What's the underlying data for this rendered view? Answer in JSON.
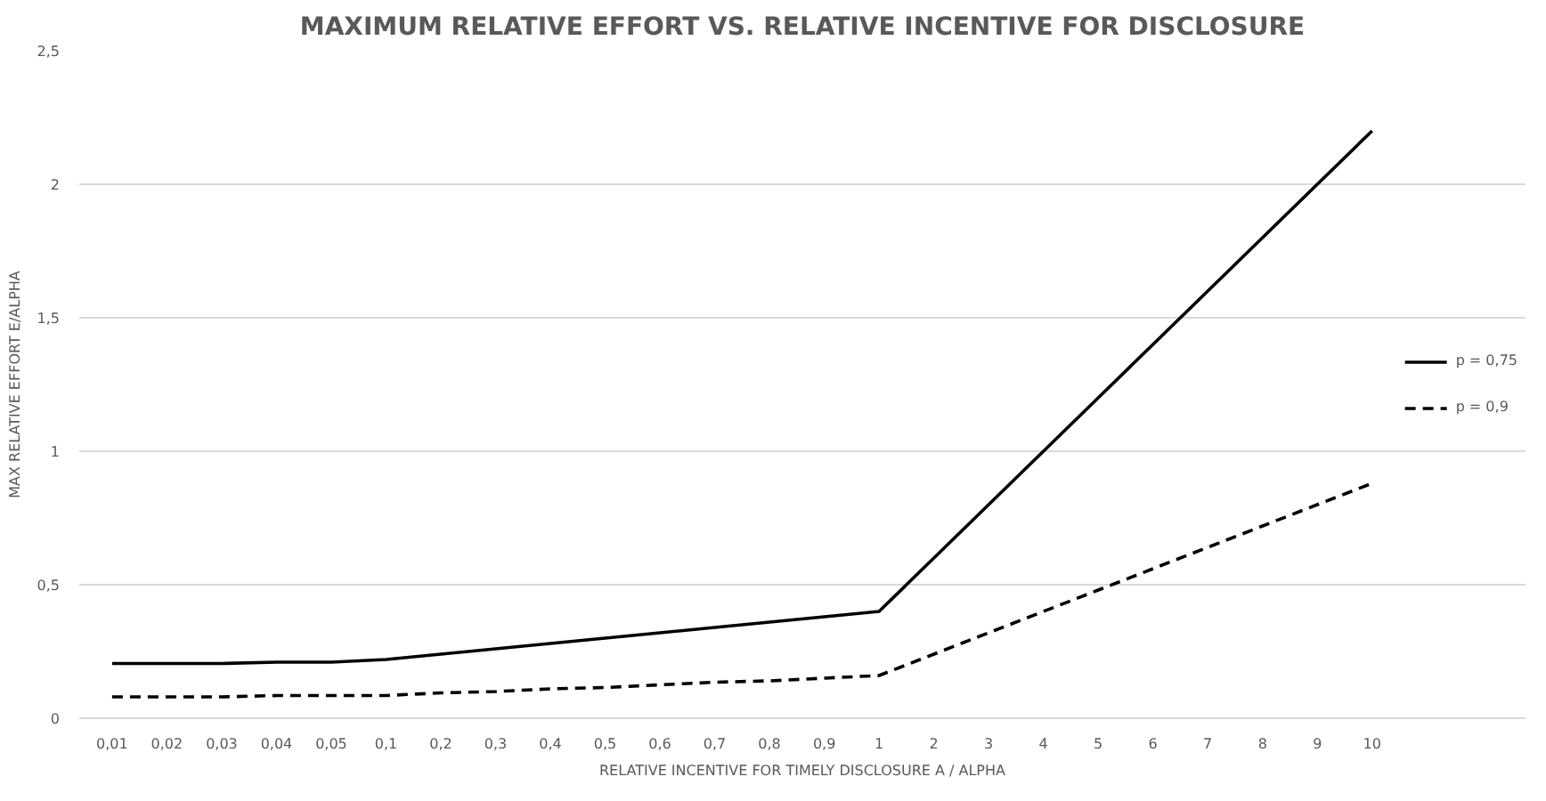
{
  "chart_data": {
    "type": "line",
    "title": "MAXIMUM RELATIVE EFFORT VS. RELATIVE INCENTIVE FOR DISCLOSURE",
    "xlabel": "RELATIVE INCENTIVE FOR TIMELY DISCLOSURE A / ALPHA",
    "ylabel": "MAX RELATIVE EFFORT E/ALPHA",
    "categories": [
      "0,01",
      "0,02",
      "0,03",
      "0,04",
      "0,05",
      "0,1",
      "0,2",
      "0,3",
      "0,4",
      "0,5",
      "0,6",
      "0,7",
      "0,8",
      "0,9",
      "1",
      "2",
      "3",
      "4",
      "5",
      "6",
      "7",
      "8",
      "9",
      "10"
    ],
    "series": [
      {
        "name": "p = 0,75",
        "color": "#000000",
        "line_style": "solid",
        "values": [
          0.205,
          0.205,
          0.205,
          0.21,
          0.21,
          0.22,
          0.24,
          0.26,
          0.28,
          0.3,
          0.32,
          0.34,
          0.36,
          0.38,
          0.4,
          0.6,
          0.8,
          1.0,
          1.2,
          1.4,
          1.6,
          1.8,
          2.0,
          2.2
        ]
      },
      {
        "name": "p = 0,9",
        "color": "#000000",
        "line_style": "dashed",
        "values": [
          0.08,
          0.08,
          0.08,
          0.085,
          0.085,
          0.085,
          0.095,
          0.1,
          0.11,
          0.115,
          0.125,
          0.135,
          0.14,
          0.15,
          0.16,
          0.24,
          0.32,
          0.4,
          0.48,
          0.56,
          0.64,
          0.72,
          0.8,
          0.88
        ]
      }
    ],
    "ylim": [
      0,
      2.5
    ],
    "yticks": [
      0,
      {
        "value": 0.5,
        "label": "0,5"
      },
      1,
      {
        "value": 1.5,
        "label": "1,5"
      },
      2,
      {
        "value": 2.5,
        "label": "2,5"
      }
    ],
    "grid": "y",
    "legend": "right",
    "marker": "none"
  }
}
